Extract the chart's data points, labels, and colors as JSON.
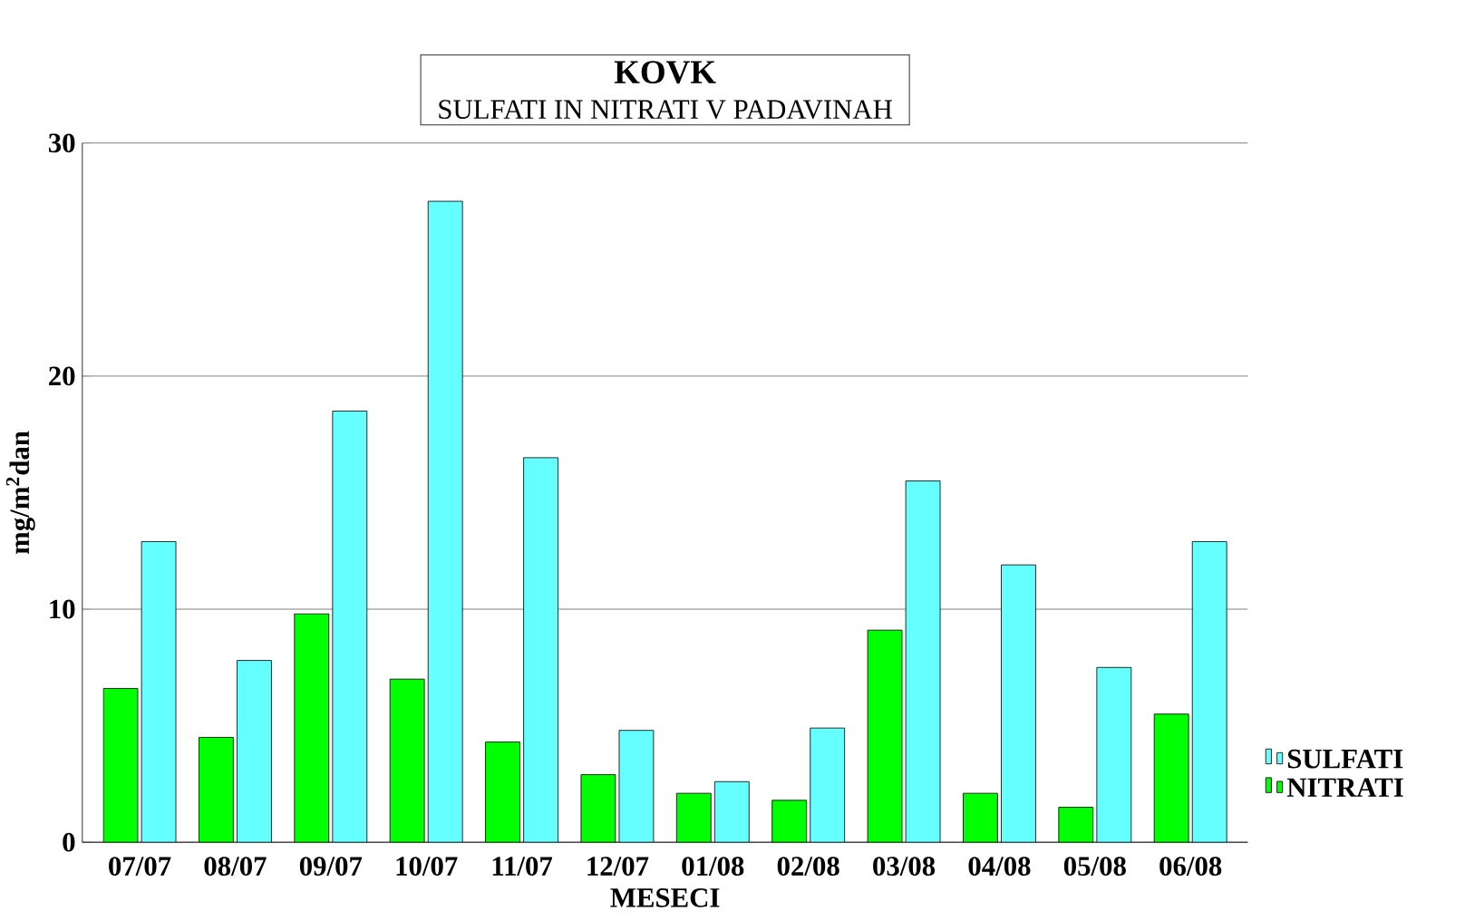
{
  "chart_data": {
    "type": "bar",
    "title": "KOVK",
    "subtitle": "SULFATI IN NITRATI V PADAVINAH",
    "xlabel": "MESECI",
    "ylabel": "mg/m$^{2}$dan",
    "categories": [
      "07/07",
      "08/07",
      "09/07",
      "10/07",
      "11/07",
      "12/07",
      "01/08",
      "02/08",
      "03/08",
      "04/08",
      "05/08",
      "06/08"
    ],
    "series": [
      {
        "name": "NITRATI",
        "color": "#00ff00",
        "values": [
          6.6,
          4.5,
          9.8,
          7.0,
          4.3,
          2.9,
          2.1,
          1.8,
          9.1,
          2.1,
          1.5,
          5.5
        ]
      },
      {
        "name": "SULFATI",
        "color": "#66ffff",
        "values": [
          12.9,
          7.8,
          18.5,
          27.5,
          16.5,
          4.8,
          2.6,
          4.9,
          15.5,
          11.9,
          7.5,
          12.9
        ]
      }
    ],
    "ylim": [
      0,
      30
    ],
    "yticks": [
      0,
      10,
      20,
      30
    ],
    "grid": "y",
    "legend": "right"
  }
}
